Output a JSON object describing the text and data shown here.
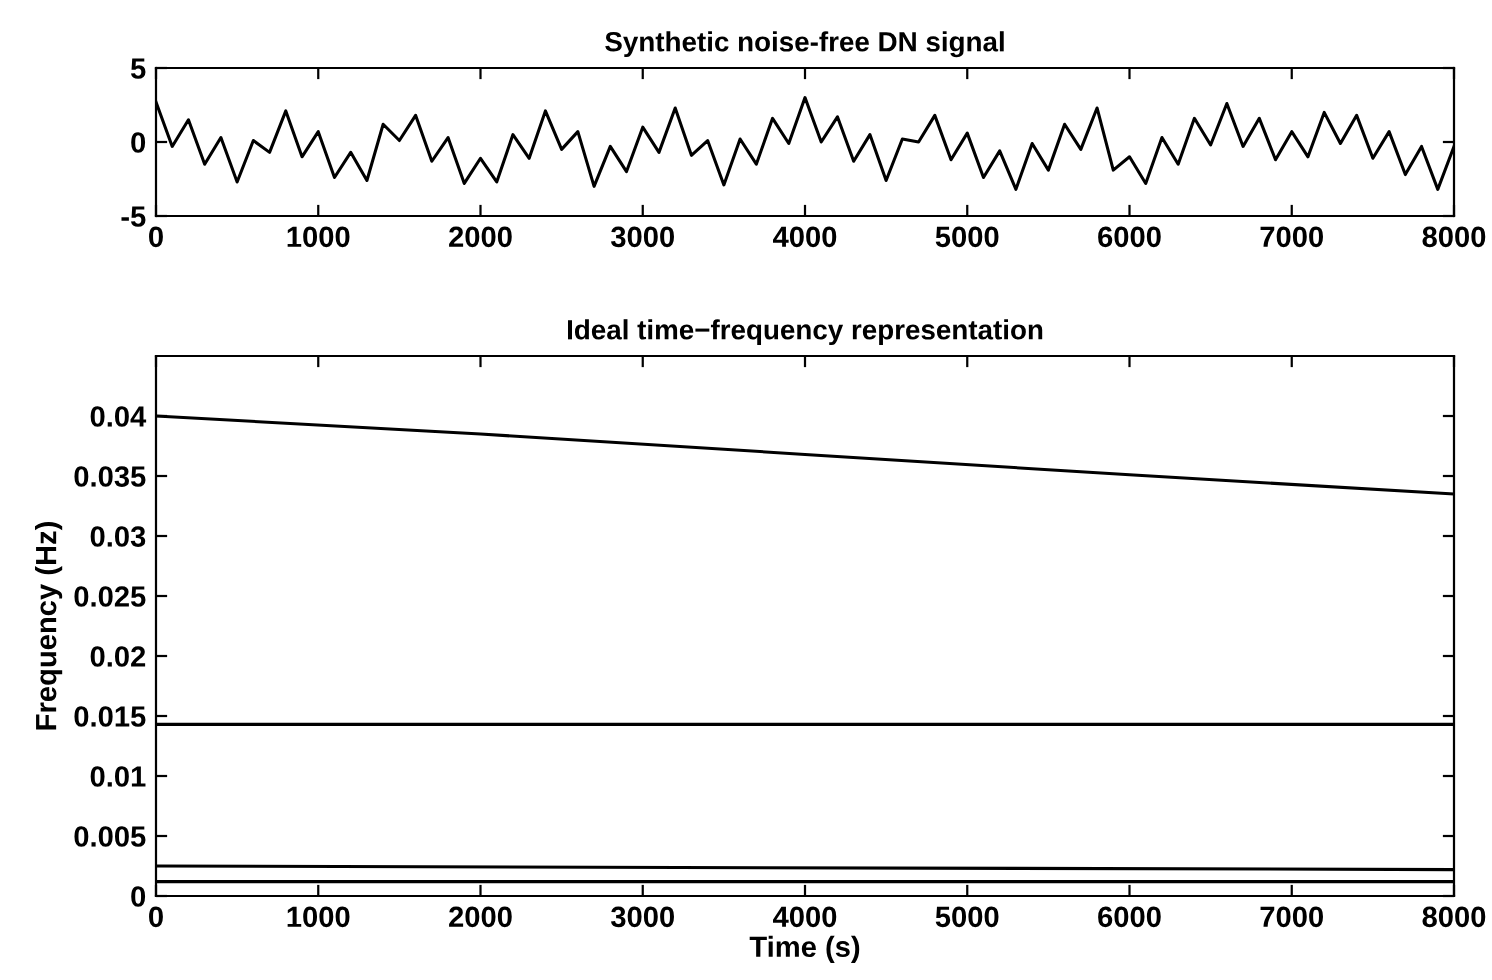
{
  "chart_data": [
    {
      "type": "line",
      "title": "Synthetic noise-free DN signal",
      "xlim": [
        0,
        8000
      ],
      "xticks": [
        0,
        1000,
        2000,
        3000,
        4000,
        5000,
        6000,
        7000,
        8000
      ],
      "ylim": [
        -5,
        5
      ],
      "yticks": [
        -5,
        0,
        5
      ],
      "grid": false,
      "series": [
        {
          "color": "#000000",
          "x": [
            0,
            100,
            200,
            300,
            400,
            500,
            600,
            700,
            800,
            900,
            1000,
            1100,
            1200,
            1300,
            1400,
            1500,
            1600,
            1700,
            1800,
            1900,
            2000,
            2100,
            2200,
            2300,
            2400,
            2500,
            2600,
            2700,
            2800,
            2900,
            3000,
            3100,
            3200,
            3300,
            3400,
            3500,
            3600,
            3700,
            3800,
            3900,
            4000,
            4100,
            4200,
            4300,
            4400,
            4500,
            4600,
            4700,
            4800,
            4900,
            5000,
            5100,
            5200,
            5300,
            5400,
            5500,
            5600,
            5700,
            5800,
            5900,
            6000,
            6100,
            6200,
            6300,
            6400,
            6500,
            6600,
            6700,
            6800,
            6900,
            7000,
            7100,
            7200,
            7300,
            7400,
            7500,
            7600,
            7700,
            7800,
            7900,
            8000
          ],
          "values": [
            2.7,
            -0.3,
            1.5,
            -1.5,
            0.3,
            -2.7,
            0.1,
            -0.7,
            2.1,
            -1.0,
            0.7,
            -2.4,
            -0.7,
            -2.6,
            1.2,
            0.1,
            1.8,
            -1.3,
            0.3,
            -2.8,
            -1.1,
            -2.7,
            0.5,
            -1.1,
            2.1,
            -0.5,
            0.7,
            -3.0,
            -0.3,
            -2.0,
            1.0,
            -0.7,
            2.3,
            -0.9,
            0.1,
            -2.9,
            0.2,
            -1.5,
            1.6,
            -0.1,
            3.0,
            0.0,
            1.7,
            -1.3,
            0.5,
            -2.6,
            0.2,
            0.0,
            1.8,
            -1.2,
            0.6,
            -2.4,
            -0.6,
            -3.2,
            -0.1,
            -1.9,
            1.2,
            -0.5,
            2.3,
            -1.9,
            -1.0,
            -2.8,
            0.3,
            -1.5,
            1.6,
            -0.2,
            2.6,
            -0.3,
            1.6,
            -1.2,
            0.7,
            -1.0,
            2.0,
            -0.1,
            1.8,
            -1.1,
            0.7,
            -2.2,
            -0.3,
            -3.2,
            -0.3
          ]
        }
      ]
    },
    {
      "type": "line",
      "title": "Ideal time−frequency representation",
      "xlabel": "Time (s)",
      "ylabel": "Frequency (Hz)",
      "xlim": [
        0,
        8000
      ],
      "xticks": [
        0,
        1000,
        2000,
        3000,
        4000,
        5000,
        6000,
        7000,
        8000
      ],
      "ylim": [
        0,
        0.045
      ],
      "yticks": [
        0,
        0.005,
        0.01,
        0.015,
        0.02,
        0.025,
        0.03,
        0.035,
        0.04
      ],
      "grid": false,
      "series": [
        {
          "color": "#000000",
          "x": [
            0,
            2000,
            4000,
            6000,
            8000
          ],
          "values": [
            0.04,
            0.0385,
            0.0368,
            0.0351,
            0.0335
          ]
        },
        {
          "color": "#000000",
          "x": [
            0,
            8000
          ],
          "values": [
            0.0143,
            0.0143
          ]
        },
        {
          "color": "#000000",
          "x": [
            0,
            8000
          ],
          "values": [
            0.0025,
            0.0022
          ]
        },
        {
          "color": "#000000",
          "x": [
            0,
            8000
          ],
          "values": [
            0.0012,
            0.0012
          ]
        }
      ]
    }
  ]
}
